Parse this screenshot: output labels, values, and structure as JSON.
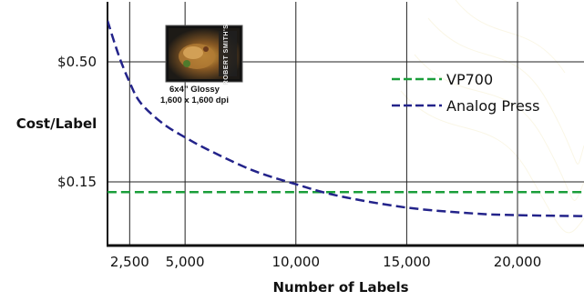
{
  "chart_data": {
    "type": "line",
    "title": "",
    "xlabel": "Number of Labels",
    "ylabel": "Cost/Label",
    "xlim": [
      1500,
      23000
    ],
    "x_ticks": [
      2500,
      5000,
      10000,
      15000,
      20000
    ],
    "x_tick_labels": [
      "2,500",
      "5,000",
      "10,000",
      "15,000",
      "20,000"
    ],
    "y_ticks": [
      0.15,
      0.5
    ],
    "y_tick_labels": [
      "$0.15",
      "$0.50"
    ],
    "grid": true,
    "legend_position": "right",
    "series": [
      {
        "name": "VP700",
        "color": "#1a9e3a",
        "dash": "dashed",
        "x": [
          1500,
          23000
        ],
        "y": [
          0.12,
          0.12
        ]
      },
      {
        "name": "Analog Press",
        "color": "#23238a",
        "dash": "dashed",
        "x": [
          1500,
          2000,
          2500,
          3000,
          4000,
          5000,
          6000,
          8000,
          10000,
          12000,
          15000,
          18000,
          20000,
          23000
        ],
        "y": [
          0.62,
          0.52,
          0.44,
          0.38,
          0.32,
          0.28,
          0.245,
          0.185,
          0.143,
          0.108,
          0.075,
          0.058,
          0.053,
          0.05
        ]
      }
    ],
    "annotation": {
      "icon": "label-thumbnail-icon",
      "brand_text": "ROBERT SMITH'S",
      "caption_line1": "6x4” Glossy",
      "caption_line2": "1,600 x 1,600 dpi"
    }
  }
}
